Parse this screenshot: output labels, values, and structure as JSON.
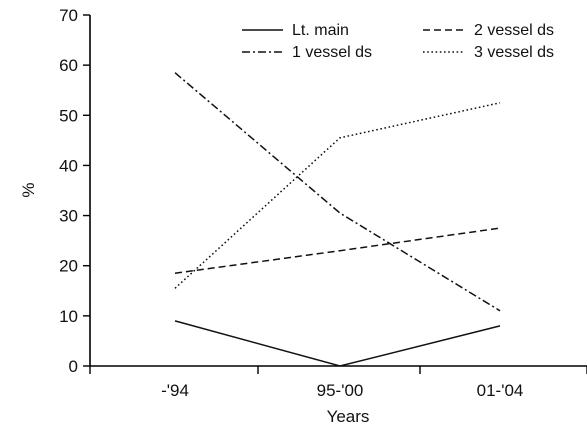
{
  "chart_data": {
    "type": "line",
    "categories": [
      "-'94",
      "95-'00",
      "01-'04"
    ],
    "xlabel": "Years",
    "ylabel": "%",
    "ylim": [
      0,
      70
    ],
    "yticks": [
      0,
      10,
      20,
      30,
      40,
      50,
      60,
      70
    ],
    "legend_position": "top-right",
    "grid": false,
    "series": [
      {
        "name": "Lt. main",
        "values": [
          9,
          0,
          8
        ],
        "dash": "solid"
      },
      {
        "name": "1 vessel ds",
        "values": [
          58.5,
          30.5,
          11
        ],
        "dash": "dashdot"
      },
      {
        "name": "2 vessel ds",
        "values": [
          18.5,
          23,
          27.5
        ],
        "dash": "dashed"
      },
      {
        "name": "3 vessel ds",
        "values": [
          15.5,
          45.5,
          52.5
        ],
        "dash": "dotted"
      }
    ]
  }
}
